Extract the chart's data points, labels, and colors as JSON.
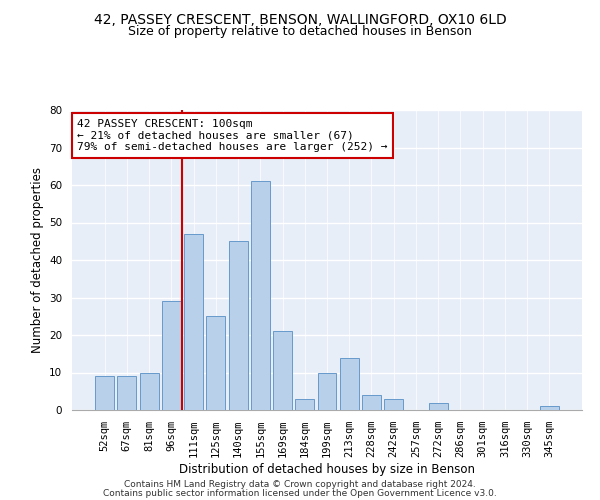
{
  "title_line1": "42, PASSEY CRESCENT, BENSON, WALLINGFORD, OX10 6LD",
  "title_line2": "Size of property relative to detached houses in Benson",
  "xlabel": "Distribution of detached houses by size in Benson",
  "ylabel": "Number of detached properties",
  "categories": [
    "52sqm",
    "67sqm",
    "81sqm",
    "96sqm",
    "111sqm",
    "125sqm",
    "140sqm",
    "155sqm",
    "169sqm",
    "184sqm",
    "199sqm",
    "213sqm",
    "228sqm",
    "242sqm",
    "257sqm",
    "272sqm",
    "286sqm",
    "301sqm",
    "316sqm",
    "330sqm",
    "345sqm"
  ],
  "values": [
    9,
    9,
    10,
    29,
    47,
    25,
    45,
    61,
    21,
    3,
    10,
    14,
    4,
    3,
    0,
    2,
    0,
    0,
    0,
    0,
    1
  ],
  "bar_color": "#b8d0ea",
  "bar_edge_color": "#6699cc",
  "annotation_box_text": "42 PASSEY CRESCENT: 100sqm\n← 21% of detached houses are smaller (67)\n79% of semi-detached houses are larger (252) →",
  "annotation_box_color": "white",
  "annotation_box_edge_color": "#cc0000",
  "vline_color": "#cc0000",
  "vline_x": 3.5,
  "ylim": [
    0,
    80
  ],
  "yticks": [
    0,
    10,
    20,
    30,
    40,
    50,
    60,
    70,
    80
  ],
  "background_color": "#e8eef8",
  "grid_color": "white",
  "footer_line1": "Contains HM Land Registry data © Crown copyright and database right 2024.",
  "footer_line2": "Contains public sector information licensed under the Open Government Licence v3.0.",
  "title_fontsize": 10,
  "subtitle_fontsize": 9,
  "axis_label_fontsize": 8.5,
  "tick_fontsize": 7.5,
  "annotation_fontsize": 8,
  "footer_fontsize": 6.5
}
